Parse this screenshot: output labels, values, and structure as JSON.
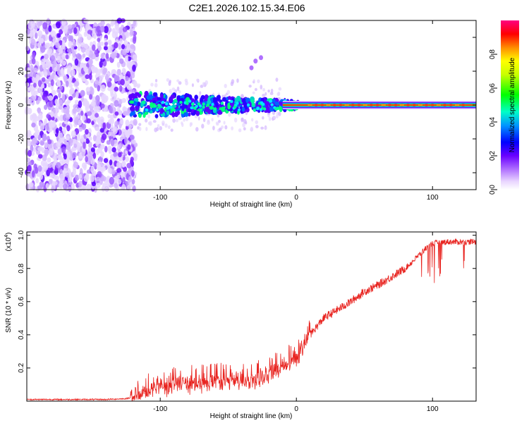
{
  "title": "C2E1.2026.102.15.34.E06",
  "chart_data": [
    {
      "type": "heatmap",
      "name": "spectrogram",
      "xlabel": "Height of straight line (km)",
      "ylabel": "Frequency (Hz)",
      "xlim": [
        -198,
        132
      ],
      "ylim": [
        -50,
        50
      ],
      "xticks": [
        -100,
        0,
        100
      ],
      "yticks": [
        -40,
        -20,
        0,
        20,
        40
      ],
      "colorbar": {
        "label": "Normalized spectral amplitude",
        "range": [
          0.0,
          1.0
        ],
        "ticks": [
          "0.0",
          "0.2",
          "0.4",
          "0.6",
          "0.8"
        ],
        "tick_values": [
          0.0,
          0.2,
          0.4,
          0.6,
          0.8
        ]
      },
      "features": {
        "noise_region_x": [
          -198,
          -122
        ],
        "signal_start_x": -122,
        "carrier_frequency_hz": 0,
        "locked_from_x": -10,
        "spur_points": [
          [
            -33,
            22
          ],
          [
            -30,
            26
          ],
          [
            -26,
            28
          ]
        ]
      },
      "colors": [
        "#ffffff",
        "#d8b8ff",
        "#8c3cff",
        "#5a00ff",
        "#0000ff",
        "#00c8ff",
        "#00ff64",
        "#ffff00",
        "#ff8000",
        "#ff0000"
      ]
    },
    {
      "type": "line",
      "name": "snr",
      "xlabel": "Height of straight line (km)",
      "ylabel": "SNR (10 * v/v)",
      "ylabel_multiplier": "(x10",
      "ylabel_multiplier_exp": "4",
      "ylabel_multiplier_close": ")",
      "xlim": [
        -198,
        132
      ],
      "ylim": [
        0,
        1.02
      ],
      "xticks": [
        -100,
        0,
        100
      ],
      "yticks": [
        0.2,
        0.4,
        0.6,
        0.8,
        1.0
      ],
      "ytick_labels": [
        "0.2",
        "0.4",
        "0.6",
        "0.8",
        "1.0"
      ],
      "line_color": "#e8231f",
      "series": [
        {
          "name": "SNR",
          "x": [
            -198,
            -170,
            -140,
            -125,
            -118,
            -110,
            -100,
            -90,
            -80,
            -70,
            -60,
            -50,
            -40,
            -30,
            -20,
            -15,
            -10,
            -5,
            0,
            5,
            10,
            15,
            20,
            30,
            40,
            50,
            60,
            70,
            80,
            85,
            90,
            95,
            100,
            110,
            120,
            132
          ],
          "values": [
            0.01,
            0.01,
            0.01,
            0.015,
            0.03,
            0.06,
            0.08,
            0.09,
            0.1,
            0.1,
            0.11,
            0.12,
            0.12,
            0.13,
            0.15,
            0.18,
            0.2,
            0.23,
            0.25,
            0.33,
            0.4,
            0.45,
            0.5,
            0.55,
            0.6,
            0.66,
            0.7,
            0.75,
            0.8,
            0.84,
            0.88,
            0.92,
            0.95,
            0.96,
            0.96,
            0.96
          ]
        }
      ]
    }
  ]
}
